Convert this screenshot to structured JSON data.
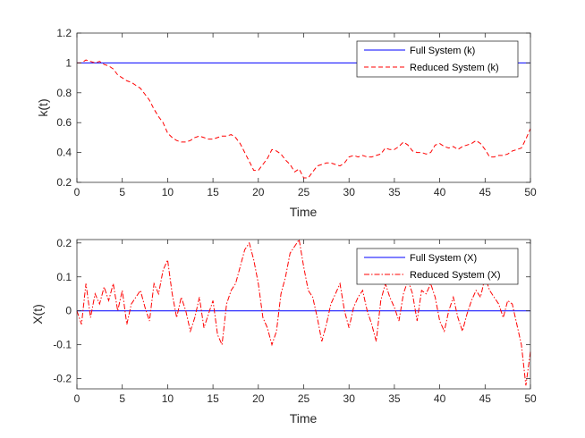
{
  "chart_data": [
    {
      "type": "line",
      "xlabel": "Time",
      "ylabel": "k(t)",
      "xlim": [
        0,
        50
      ],
      "ylim": [
        0.2,
        1.2
      ],
      "xticks": [
        "0",
        "5",
        "10",
        "15",
        "20",
        "25",
        "30",
        "35",
        "40",
        "45",
        "50"
      ],
      "yticks": [
        "0.2",
        "0.4",
        "0.6",
        "0.8",
        "1",
        "1.2"
      ],
      "legend_position": "top-right",
      "series": [
        {
          "name": "Full System (k)",
          "color": "#0000ff",
          "style": "solid",
          "x": [
            0,
            50
          ],
          "y": [
            1,
            1
          ]
        },
        {
          "name": "Reduced System (k)",
          "color": "#ff0000",
          "style": "dashed",
          "x": [
            0,
            0.5,
            1,
            1.5,
            2,
            2.5,
            3,
            3.5,
            4,
            4.5,
            5,
            5.5,
            6,
            6.5,
            7,
            7.5,
            8,
            8.5,
            9,
            9.5,
            10,
            10.5,
            11,
            11.5,
            12,
            12.5,
            13,
            13.5,
            14,
            14.5,
            15,
            15.5,
            16,
            16.5,
            17,
            17.5,
            18,
            18.5,
            19,
            19.5,
            20,
            20.5,
            21,
            21.5,
            22,
            22.5,
            23,
            23.5,
            24,
            24.5,
            25,
            25.5,
            26,
            26.5,
            27,
            27.5,
            28,
            28.5,
            29,
            29.5,
            30,
            30.5,
            31,
            31.5,
            32,
            32.5,
            33,
            33.5,
            34,
            34.5,
            35,
            35.5,
            36,
            36.5,
            37,
            37.5,
            38,
            38.5,
            39,
            39.5,
            40,
            40.5,
            41,
            41.5,
            42,
            42.5,
            43,
            43.5,
            44,
            44.5,
            45,
            45.5,
            46,
            46.5,
            47,
            47.5,
            48,
            48.5,
            49,
            49.5,
            50
          ],
          "y": [
            1,
            1.0,
            1.02,
            1.01,
            1.0,
            1.01,
            0.99,
            0.98,
            0.96,
            0.92,
            0.9,
            0.88,
            0.87,
            0.85,
            0.83,
            0.79,
            0.75,
            0.69,
            0.64,
            0.6,
            0.53,
            0.5,
            0.48,
            0.47,
            0.47,
            0.48,
            0.5,
            0.51,
            0.5,
            0.49,
            0.49,
            0.5,
            0.51,
            0.51,
            0.52,
            0.5,
            0.46,
            0.4,
            0.34,
            0.28,
            0.28,
            0.32,
            0.36,
            0.42,
            0.41,
            0.39,
            0.35,
            0.32,
            0.27,
            0.29,
            0.23,
            0.23,
            0.27,
            0.31,
            0.32,
            0.33,
            0.33,
            0.32,
            0.31,
            0.33,
            0.37,
            0.38,
            0.37,
            0.38,
            0.37,
            0.37,
            0.38,
            0.39,
            0.43,
            0.42,
            0.42,
            0.44,
            0.47,
            0.45,
            0.41,
            0.4,
            0.4,
            0.39,
            0.4,
            0.45,
            0.46,
            0.44,
            0.43,
            0.44,
            0.42,
            0.44,
            0.45,
            0.46,
            0.48,
            0.46,
            0.42,
            0.37,
            0.37,
            0.38,
            0.38,
            0.39,
            0.41,
            0.42,
            0.43,
            0.49,
            0.56
          ]
        }
      ]
    },
    {
      "type": "line",
      "xlabel": "Time",
      "ylabel": "X(t)",
      "xlim": [
        0,
        50
      ],
      "ylim": [
        -0.23,
        0.21
      ],
      "xticks": [
        "0",
        "5",
        "10",
        "15",
        "20",
        "25",
        "30",
        "35",
        "40",
        "45",
        "50"
      ],
      "yticks": [
        "-0.2",
        "-0.1",
        "0",
        "0.1",
        "0.2"
      ],
      "legend_position": "top-right",
      "series": [
        {
          "name": "Full System (X)",
          "color": "#0000ff",
          "style": "solid",
          "x": [
            0,
            50
          ],
          "y": [
            0,
            0
          ]
        },
        {
          "name": "Reduced System (X)",
          "color": "#ff0000",
          "style": "dashdot",
          "x": [
            0,
            0.5,
            1,
            1.5,
            2,
            2.5,
            3,
            3.5,
            4,
            4.5,
            5,
            5.5,
            6,
            6.5,
            7,
            7.5,
            8,
            8.5,
            9,
            9.5,
            10,
            10.5,
            11,
            11.5,
            12,
            12.5,
            13,
            13.5,
            14,
            14.5,
            15,
            15.5,
            16,
            16.5,
            17,
            17.5,
            18,
            18.5,
            19,
            19.5,
            20,
            20.5,
            21,
            21.5,
            22,
            22.5,
            23,
            23.5,
            24,
            24.5,
            25,
            25.5,
            26,
            26.5,
            27,
            27.5,
            28,
            28.5,
            29,
            29.5,
            30,
            30.5,
            31,
            31.5,
            32,
            32.5,
            33,
            33.5,
            34,
            34.5,
            35,
            35.5,
            36,
            36.5,
            37,
            37.5,
            38,
            38.5,
            39,
            39.5,
            40,
            40.5,
            41,
            41.5,
            42,
            42.5,
            43,
            43.5,
            44,
            44.5,
            45,
            45.5,
            46,
            46.5,
            47,
            47.5,
            48,
            48.5,
            49,
            49.5,
            50
          ],
          "y": [
            0,
            -0.04,
            0.08,
            -0.02,
            0.05,
            0.02,
            0.07,
            0.03,
            0.08,
            0.0,
            0.06,
            -0.04,
            0.02,
            0.04,
            0.06,
            0.01,
            -0.03,
            0.08,
            0.05,
            0.12,
            0.15,
            0.05,
            -0.02,
            0.04,
            0.0,
            -0.06,
            -0.02,
            0.04,
            -0.05,
            -0.01,
            0.03,
            -0.07,
            -0.1,
            0.02,
            0.06,
            0.08,
            0.13,
            0.18,
            0.2,
            0.15,
            0.08,
            -0.02,
            -0.05,
            -0.1,
            -0.06,
            0.05,
            0.1,
            0.17,
            0.19,
            0.21,
            0.13,
            0.06,
            0.04,
            -0.02,
            -0.09,
            -0.04,
            0.02,
            0.05,
            0.08,
            0.0,
            -0.05,
            0.01,
            0.04,
            0.06,
            0.0,
            -0.04,
            -0.09,
            0.03,
            0.08,
            0.04,
            0.01,
            -0.03,
            0.05,
            0.09,
            0.05,
            -0.03,
            0.06,
            0.05,
            0.08,
            0.04,
            -0.03,
            -0.06,
            0.0,
            0.04,
            -0.02,
            -0.06,
            -0.01,
            0.03,
            0.06,
            0.04,
            0.1,
            0.06,
            0.04,
            0.02,
            -0.02,
            0.03,
            0.02,
            -0.04,
            -0.1,
            -0.22,
            -0.12
          ]
        }
      ]
    }
  ]
}
